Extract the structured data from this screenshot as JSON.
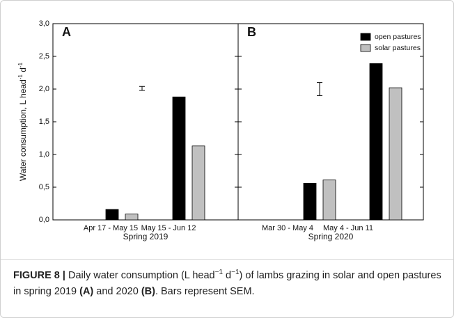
{
  "chart_data": [
    {
      "type": "bar",
      "panel": "A",
      "ylabel": [
        "Water consumption, L head",
        "-1",
        " d",
        "-1"
      ],
      "xlabel": "Spring 2019",
      "categories": [
        "Apr 17 - May 15",
        "May 15 - Jun 12"
      ],
      "series": [
        {
          "color": "#000000",
          "values": [
            0.16,
            1.88
          ]
        },
        {
          "color": "#c0c0c0",
          "values": [
            0.09,
            1.13
          ]
        }
      ],
      "sem": {
        "value": 2.01,
        "error": 0.03
      },
      "ylim": [
        0,
        3
      ],
      "yticks": [
        {
          "value": 0,
          "label": "0,0"
        },
        {
          "value": 0.5,
          "label": "0,5"
        },
        {
          "value": 1,
          "label": "1,0"
        },
        {
          "value": 1.5,
          "label": "1,5"
        },
        {
          "value": 2,
          "label": "2,0"
        },
        {
          "value": 2.5,
          "label": "2,5"
        },
        {
          "value": 3,
          "label": "3,0"
        }
      ],
      "grid": false
    },
    {
      "type": "bar",
      "panel": "B",
      "xlabel": "Spring 2020",
      "categories": [
        "Mar 30 - May 4",
        "May 4 - Jun 11"
      ],
      "series": [
        {
          "name": "open pastures",
          "color": "#000000",
          "values": [
            0.56,
            2.39
          ]
        },
        {
          "name": "solar pastures",
          "color": "#c0c0c0",
          "values": [
            0.61,
            2.02
          ]
        }
      ],
      "sem": {
        "value": 2.0,
        "error": 0.1
      },
      "ylim": [
        0,
        3
      ],
      "yticks": [
        {
          "value": 0,
          "label": "0,0"
        },
        {
          "value": 0.5,
          "label": "0,5"
        },
        {
          "value": 1,
          "label": "1,0"
        },
        {
          "value": 1.5,
          "label": "1,5"
        },
        {
          "value": 2,
          "label": "2,0"
        },
        {
          "value": 2.5,
          "label": "2,5"
        },
        {
          "value": 3,
          "label": "3,0"
        }
      ],
      "grid": false,
      "legend": "upper right"
    }
  ],
  "caption": {
    "label": "FIGURE 8 |",
    "parts": [
      " Daily water consumption (L head",
      "−1",
      " d",
      "−1",
      ") of lambs grazing in solar and open pastures in spring 2019 ",
      "(A)",
      " and 2020 ",
      "(B)",
      ". Bars represent SEM."
    ]
  }
}
